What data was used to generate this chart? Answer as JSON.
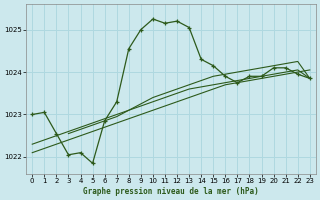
{
  "background_color": "#cce8ed",
  "plot_bg_color": "#cce8ed",
  "grid_color": "#afd8e0",
  "line_color": "#2d5a1b",
  "xlabel": "Graphe pression niveau de la mer (hPa)",
  "xlim": [
    -0.5,
    23.5
  ],
  "ylim": [
    1021.6,
    1025.6
  ],
  "yticks": [
    1022,
    1023,
    1024,
    1025
  ],
  "xticks": [
    0,
    1,
    2,
    3,
    4,
    5,
    6,
    7,
    8,
    9,
    10,
    11,
    12,
    13,
    14,
    15,
    16,
    17,
    18,
    19,
    20,
    21,
    22,
    23
  ],
  "series": [
    {
      "x": [
        0,
        1,
        2,
        3,
        4,
        5,
        6,
        7,
        8,
        9,
        10,
        11,
        12,
        13,
        14,
        15,
        16,
        17,
        18,
        19,
        20,
        21,
        22,
        23
      ],
      "y": [
        1023.0,
        1023.05,
        1022.55,
        1022.05,
        1022.1,
        1021.85,
        1022.85,
        1023.3,
        1024.55,
        1025.0,
        1025.25,
        1025.15,
        1025.2,
        1025.05,
        1024.3,
        1024.15,
        1023.9,
        1023.75,
        1023.9,
        1023.9,
        1024.1,
        1024.1,
        1023.95,
        1023.85
      ]
    },
    {
      "x": [
        0,
        1,
        2,
        3,
        4,
        5,
        6,
        7,
        8,
        9,
        10,
        11,
        12,
        13,
        14,
        15,
        16,
        17,
        18,
        19,
        20,
        21,
        22,
        23
      ],
      "y": [
        1022.1,
        1022.2,
        1022.3,
        1022.4,
        1022.5,
        1022.6,
        1022.7,
        1022.8,
        1022.9,
        1023.0,
        1023.1,
        1023.2,
        1023.3,
        1023.4,
        1023.5,
        1023.6,
        1023.7,
        1023.75,
        1023.8,
        1023.85,
        1023.9,
        1023.95,
        1024.0,
        1024.05
      ]
    },
    {
      "x": [
        0,
        1,
        2,
        3,
        4,
        5,
        6,
        7,
        8,
        9,
        10,
        11,
        12,
        13,
        14,
        15,
        16,
        17,
        18,
        19,
        20,
        21,
        22,
        23
      ],
      "y": [
        1022.3,
        1022.4,
        1022.5,
        1022.6,
        1022.7,
        1022.8,
        1022.9,
        1023.0,
        1023.1,
        1023.2,
        1023.3,
        1023.4,
        1023.5,
        1023.6,
        1023.65,
        1023.7,
        1023.75,
        1023.8,
        1023.85,
        1023.9,
        1023.95,
        1024.0,
        1024.05,
        1023.85
      ]
    },
    {
      "x": [
        3,
        4,
        5,
        6,
        7,
        8,
        9,
        10,
        11,
        12,
        13,
        14,
        15,
        16,
        17,
        18,
        19,
        20,
        21,
        22,
        23
      ],
      "y": [
        1022.55,
        1022.65,
        1022.75,
        1022.85,
        1022.95,
        1023.1,
        1023.25,
        1023.4,
        1023.5,
        1023.6,
        1023.7,
        1023.8,
        1023.9,
        1023.95,
        1024.0,
        1024.05,
        1024.1,
        1024.15,
        1024.2,
        1024.25,
        1023.85
      ]
    }
  ]
}
